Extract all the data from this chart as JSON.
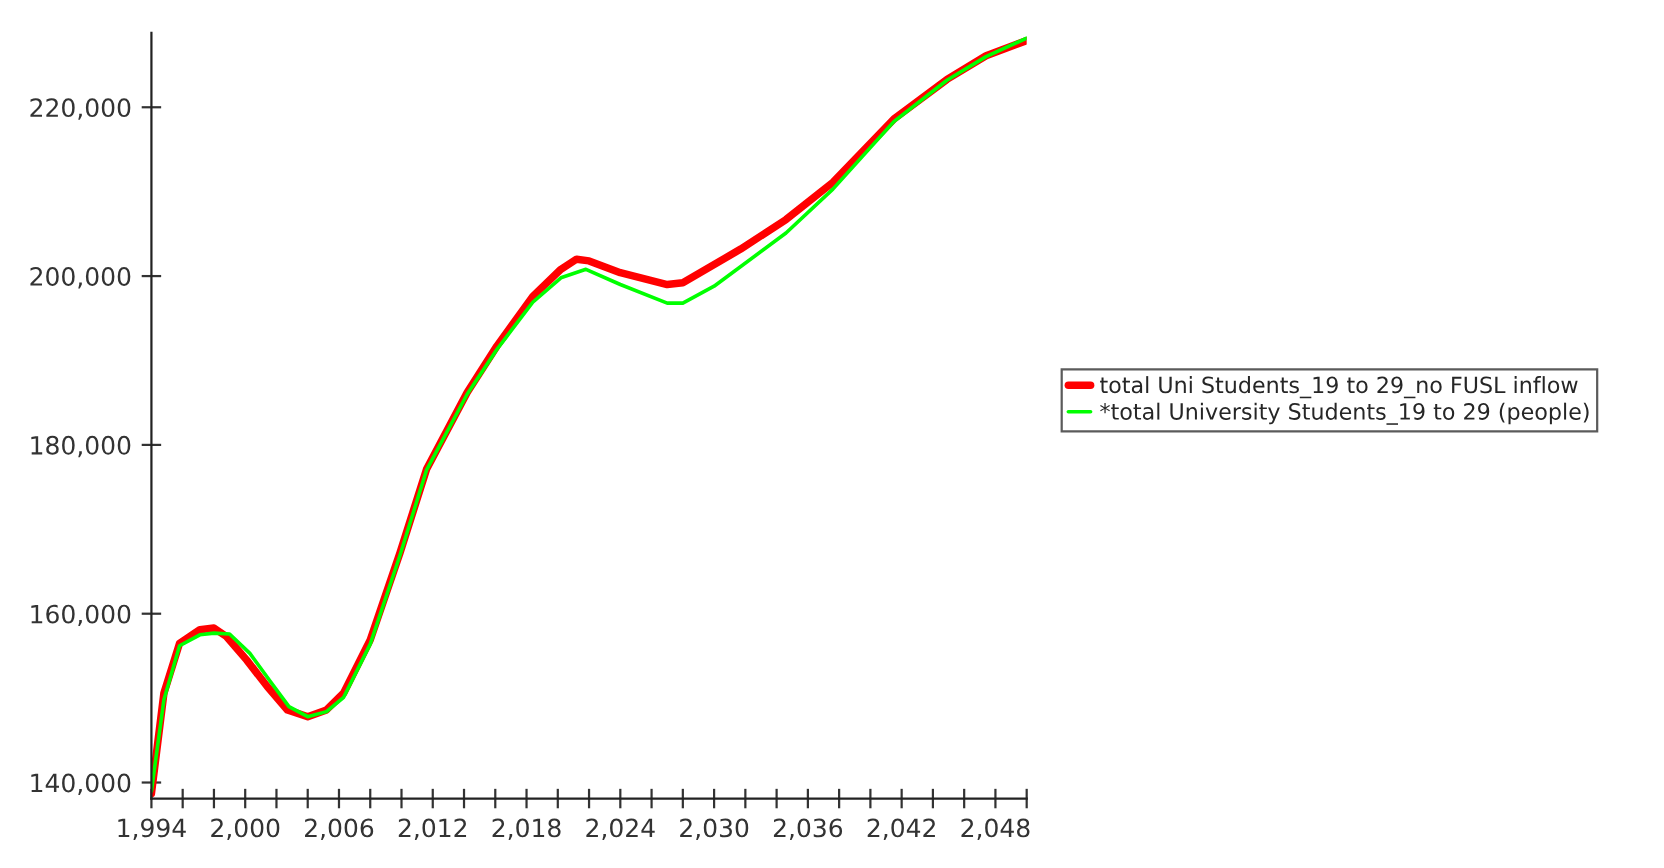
{
  "chart_data": {
    "type": "line",
    "xlim": [
      1994,
      2050
    ],
    "ylim": [
      138100,
      228800
    ],
    "xticks": [
      {
        "value": 1994,
        "label": "1,994"
      },
      {
        "value": 1996,
        "label": null
      },
      {
        "value": 1998,
        "label": null
      },
      {
        "value": 2000,
        "label": "2,000"
      },
      {
        "value": 2002,
        "label": null
      },
      {
        "value": 2004,
        "label": null
      },
      {
        "value": 2006,
        "label": "2,006"
      },
      {
        "value": 2008,
        "label": null
      },
      {
        "value": 2010,
        "label": null
      },
      {
        "value": 2012,
        "label": "2,012"
      },
      {
        "value": 2014,
        "label": null
      },
      {
        "value": 2016,
        "label": null
      },
      {
        "value": 2018,
        "label": "2,018"
      },
      {
        "value": 2020,
        "label": null
      },
      {
        "value": 2022,
        "label": null
      },
      {
        "value": 2024,
        "label": "2,024"
      },
      {
        "value": 2026,
        "label": null
      },
      {
        "value": 2028,
        "label": null
      },
      {
        "value": 2030,
        "label": "2,030"
      },
      {
        "value": 2032,
        "label": null
      },
      {
        "value": 2034,
        "label": null
      },
      {
        "value": 2036,
        "label": "2,036"
      },
      {
        "value": 2038,
        "label": null
      },
      {
        "value": 2040,
        "label": null
      },
      {
        "value": 2042,
        "label": "2,042"
      },
      {
        "value": 2044,
        "label": null
      },
      {
        "value": 2046,
        "label": null
      },
      {
        "value": 2048,
        "label": "2,048"
      },
      {
        "value": 2050,
        "label": null
      }
    ],
    "yticks": [
      {
        "value": 140000,
        "label": "140,000"
      },
      {
        "value": 160000,
        "label": "160,000"
      },
      {
        "value": 180000,
        "label": "180,000"
      },
      {
        "value": 200000,
        "label": "200,000"
      },
      {
        "value": 220000,
        "label": "220,000"
      }
    ],
    "grid": false,
    "legend": "right",
    "marker": "none",
    "line_style": "solid",
    "series": [
      {
        "name": "total Uni Students_19 to 29_no FUSL inflow",
        "color": "#ff0000",
        "x": [
          1994,
          1994.8,
          1995.8,
          1997.1,
          1998,
          1998.8,
          2000.1,
          2001.4,
          2002.7,
          2004,
          2005.2,
          2006.3,
          2008,
          2009.9,
          2011.6,
          2014.2,
          2016.1,
          2018.4,
          2020.2,
          2021.2,
          2022,
          2024,
          2027,
          2028,
          2031.7,
          2034.6,
          2037.6,
          2041.5,
          2044.9,
          2047.4,
          2050
        ],
        "values": [
          138700,
          150600,
          156500,
          158100,
          158300,
          157300,
          154500,
          151400,
          148600,
          147800,
          148600,
          150600,
          156900,
          167200,
          177100,
          186200,
          191700,
          197600,
          200800,
          202000,
          201800,
          200400,
          199000,
          199200,
          203200,
          206700,
          211100,
          218600,
          223300,
          226100,
          227900
        ]
      },
      {
        "name": "*total University Students_19 to 29 (people)",
        "color": "#00ff00",
        "x": [
          1994,
          1994.8,
          1995.8,
          1997.1,
          1998,
          1999,
          2000.3,
          2001.6,
          2002.8,
          2004,
          2005.2,
          2006.3,
          2008,
          2009.9,
          2011.6,
          2014.2,
          2016.1,
          2018.4,
          2020.2,
          2021.8,
          2024,
          2027,
          2028,
          2030,
          2034.6,
          2037.6,
          2041.5,
          2044.9,
          2047.4,
          2050
        ],
        "values": [
          139000,
          149800,
          156200,
          157500,
          157700,
          157600,
          155300,
          152000,
          149000,
          147800,
          148400,
          150100,
          156400,
          166900,
          177000,
          186000,
          191300,
          196900,
          199800,
          200800,
          199000,
          196800,
          196800,
          198800,
          205100,
          210300,
          218300,
          223200,
          226000,
          228200
        ]
      }
    ]
  }
}
